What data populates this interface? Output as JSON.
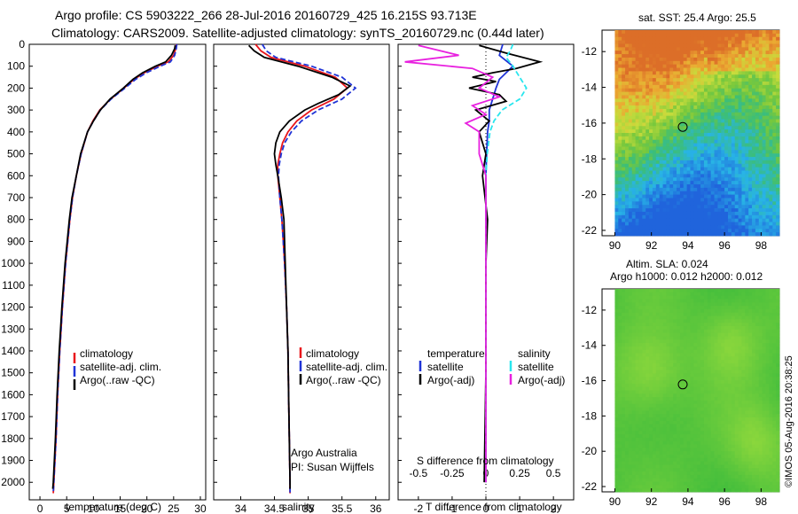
{
  "header": {
    "line1": "Argo profile: CS 5903222_266 28-Jul-2016 20160729_425 16.215S 93.713E",
    "line2": "Climatology: CARS2009. Satellite-adjusted climatology: synTS_20160729.nc (0.44d later)"
  },
  "colors": {
    "climatology": "#e8161b",
    "satellite": "#1f33d6",
    "argo": "#000000",
    "sat_salinity": "#28e6ee",
    "argo_adj_salinity": "#e821df"
  },
  "chart_data": [
    {
      "type": "line",
      "panel": "temperature",
      "xlabel": "temperature (deg C)",
      "ylabel": "",
      "xlim": [
        -2,
        31
      ],
      "ylim": [
        2080,
        0
      ],
      "xticks": [
        0,
        5,
        10,
        15,
        20,
        25,
        30
      ],
      "yticks": [
        0,
        100,
        200,
        300,
        400,
        500,
        600,
        700,
        800,
        900,
        1000,
        1100,
        1200,
        1300,
        1400,
        1500,
        1600,
        1700,
        1800,
        1900,
        2000
      ],
      "legend": [
        "climatology",
        "satellite-adj. clim.",
        "Argo(..raw -QC)"
      ],
      "series": [
        {
          "name": "climatology",
          "color": "#e8161b",
          "depth": [
            0,
            20,
            50,
            80,
            100,
            130,
            160,
            200,
            250,
            300,
            350,
            400,
            500,
            600,
            700,
            800,
            900,
            1000,
            1200,
            1400,
            1600,
            1800,
            2000,
            2050
          ],
          "values": [
            25.5,
            25.4,
            25.0,
            24.0,
            22.0,
            19.5,
            17.6,
            15.7,
            13.2,
            11.2,
            9.9,
            8.9,
            7.7,
            6.8,
            6.1,
            5.6,
            5.2,
            4.8,
            4.2,
            3.7,
            3.3,
            3.0,
            2.6,
            2.5
          ]
        },
        {
          "name": "satellite-adj. clim.",
          "color": "#1f33d6",
          "depth": [
            0,
            20,
            50,
            80,
            100,
            130,
            160,
            200,
            250,
            300,
            350,
            400,
            500,
            600,
            700,
            800,
            900,
            1000,
            1200,
            1400,
            1600,
            1800,
            2000,
            2050
          ],
          "values": [
            25.6,
            25.5,
            25.2,
            24.4,
            22.5,
            19.9,
            17.9,
            15.9,
            13.3,
            11.3,
            10.0,
            8.9,
            7.7,
            6.8,
            6.1,
            5.6,
            5.2,
            4.8,
            4.2,
            3.7,
            3.3,
            3.0,
            2.6,
            2.5
          ]
        },
        {
          "name": "Argo(..raw -QC)",
          "color": "#000000",
          "depth": [
            5,
            20,
            50,
            80,
            100,
            130,
            160,
            200,
            250,
            300,
            350,
            400,
            500,
            600,
            700,
            800,
            900,
            1000,
            1200,
            1400,
            1600,
            1800,
            2000,
            2030
          ],
          "values": [
            25.3,
            25.2,
            24.6,
            23.5,
            21.6,
            19.2,
            17.4,
            15.6,
            13.1,
            11.3,
            10.0,
            8.9,
            7.6,
            6.8,
            6.0,
            5.5,
            5.1,
            4.7,
            4.1,
            3.6,
            3.2,
            2.9,
            2.5,
            2.4
          ]
        }
      ]
    },
    {
      "type": "line",
      "panel": "salinity",
      "xlabel": "salinity",
      "xlim": [
        33.6,
        36.2
      ],
      "ylim": [
        2080,
        0
      ],
      "xticks": [
        34,
        34.5,
        35,
        35.5,
        36
      ],
      "legend": [
        "climatology",
        "satellite-adj. clim.",
        "Argo(..raw -QC)"
      ],
      "annotation": [
        "Argo Australia",
        "PI: Susan Wijffels"
      ],
      "series": [
        {
          "name": "climatology",
          "color": "#e8161b",
          "depth": [
            0,
            30,
            60,
            100,
            150,
            200,
            250,
            300,
            350,
            400,
            450,
            500,
            550,
            600,
            700,
            800,
            1000,
            1200,
            1400,
            1600,
            1800,
            2000,
            2050
          ],
          "values": [
            34.22,
            34.3,
            34.45,
            34.95,
            35.4,
            35.58,
            35.38,
            35.05,
            34.83,
            34.7,
            34.62,
            34.58,
            34.55,
            34.55,
            34.58,
            34.61,
            34.65,
            34.68,
            34.7,
            34.71,
            34.72,
            34.73,
            34.73
          ]
        },
        {
          "name": "satellite-adj. clim.",
          "color": "#1f33d6",
          "depth": [
            0,
            30,
            60,
            100,
            150,
            200,
            250,
            300,
            350,
            400,
            450,
            500,
            550,
            600,
            700,
            800,
            1000,
            1200,
            1400,
            1600,
            1800,
            2000,
            2050
          ],
          "values": [
            34.32,
            34.38,
            34.52,
            35.05,
            35.5,
            35.7,
            35.5,
            35.15,
            34.9,
            34.75,
            34.65,
            34.6,
            34.57,
            34.56,
            34.58,
            34.61,
            34.65,
            34.68,
            34.7,
            34.71,
            34.72,
            34.73,
            34.73
          ]
        },
        {
          "name": "Argo(..raw -QC)",
          "color": "#000000",
          "depth": [
            5,
            30,
            60,
            100,
            150,
            190,
            230,
            270,
            300,
            350,
            400,
            450,
            500,
            550,
            600,
            700,
            800,
            1000,
            1200,
            1400,
            1600,
            1800,
            2000,
            2030
          ],
          "values": [
            34.12,
            34.2,
            34.35,
            34.85,
            35.35,
            35.62,
            35.45,
            35.15,
            34.95,
            34.72,
            34.58,
            34.52,
            34.5,
            34.52,
            34.55,
            34.6,
            34.64,
            34.66,
            34.68,
            34.7,
            34.71,
            34.72,
            34.73,
            34.73
          ]
        }
      ]
    },
    {
      "type": "line",
      "panel": "difference",
      "xlabel": "T difference from climatology",
      "xlabel_top": "S difference from climatology",
      "xlim": [
        -2.6,
        2.6
      ],
      "ylim": [
        2080,
        0
      ],
      "xticks": [
        -2,
        -1,
        0,
        1,
        2
      ],
      "xticks_s": [
        -0.5,
        -0.25,
        0,
        0.25,
        0.5
      ],
      "legend_headers": [
        "temperature",
        "salinity"
      ],
      "legend": [
        "satellite",
        "Argo(-adj)",
        "satellite",
        "Argo(-adj)"
      ],
      "series": [
        {
          "name": "satellite",
          "group": "temperature",
          "color": "#1f33d6",
          "depth": [
            0,
            50,
            100,
            130,
            160,
            200,
            250,
            300,
            350,
            400,
            500,
            600,
            800,
            1000,
            1500,
            2000
          ],
          "values": [
            0.5,
            0.4,
            0.8,
            0.6,
            0.4,
            0.3,
            0.2,
            0.1,
            0.1,
            0.05,
            0.02,
            0.0,
            0.0,
            0.0,
            0.0,
            0.0
          ]
        },
        {
          "name": "Argo(-adj)",
          "group": "temperature",
          "color": "#000000",
          "depth": [
            5,
            40,
            80,
            110,
            130,
            150,
            170,
            200,
            230,
            260,
            300,
            350,
            400,
            500,
            600,
            800,
            1000,
            1500,
            2000
          ],
          "values": [
            -0.2,
            0.6,
            1.6,
            0.9,
            0.2,
            -0.4,
            0.3,
            -0.5,
            0.4,
            0.6,
            -0.3,
            0.1,
            -0.2,
            0.0,
            -0.1,
            0.05,
            0.0,
            0.0,
            -0.05
          ]
        },
        {
          "name": "satellite",
          "group": "salinity",
          "color": "#28e6ee",
          "depth": [
            0,
            30,
            60,
            100,
            150,
            200,
            250,
            300,
            350,
            400,
            500,
            600,
            800,
            1000,
            1500,
            2000
          ],
          "values": [
            0.2,
            0.18,
            0.15,
            0.2,
            0.25,
            0.3,
            0.25,
            0.12,
            0.06,
            0.03,
            0.01,
            0.0,
            0.0,
            0.0,
            0.0,
            0.0
          ]
        },
        {
          "name": "Argo(-adj)",
          "group": "salinity",
          "color": "#e821df",
          "depth": [
            5,
            50,
            80,
            110,
            150,
            200,
            240,
            280,
            320,
            360,
            400,
            500,
            600,
            800,
            1000,
            1500,
            2000
          ],
          "values": [
            -0.5,
            -0.2,
            -0.6,
            -0.1,
            0.05,
            -0.05,
            0.1,
            -0.1,
            0.0,
            -0.15,
            -0.05,
            -0.05,
            0.0,
            0.0,
            0.0,
            0.0,
            0.0
          ]
        }
      ]
    },
    {
      "type": "heatmap",
      "panel": "sst-map",
      "title": "sat. SST: 25.4  Argo: 25.5",
      "xlim": [
        89.3,
        99.0
      ],
      "ylim": [
        -22.3,
        -10.8
      ],
      "xticks": [
        90,
        92,
        94,
        96,
        98
      ],
      "yticks": [
        -12,
        -14,
        -16,
        -18,
        -20,
        -22
      ],
      "marker": {
        "lon": 93.713,
        "lat": -16.215
      }
    },
    {
      "type": "heatmap",
      "panel": "sla-map",
      "title_lines": [
        "Altim. SLA: 0.024",
        "Argo h1000: 0.012  h2000: 0.012"
      ],
      "xlim": [
        89.3,
        99.0
      ],
      "ylim": [
        -22.3,
        -10.8
      ],
      "xticks": [
        90,
        92,
        94,
        96,
        98
      ],
      "yticks": [
        -12,
        -14,
        -16,
        -18,
        -20,
        -22
      ],
      "marker": {
        "lon": 93.713,
        "lat": -16.215
      }
    }
  ],
  "footer": {
    "timestamp": "©IMOS 05-Aug-2016 20:38:25"
  }
}
